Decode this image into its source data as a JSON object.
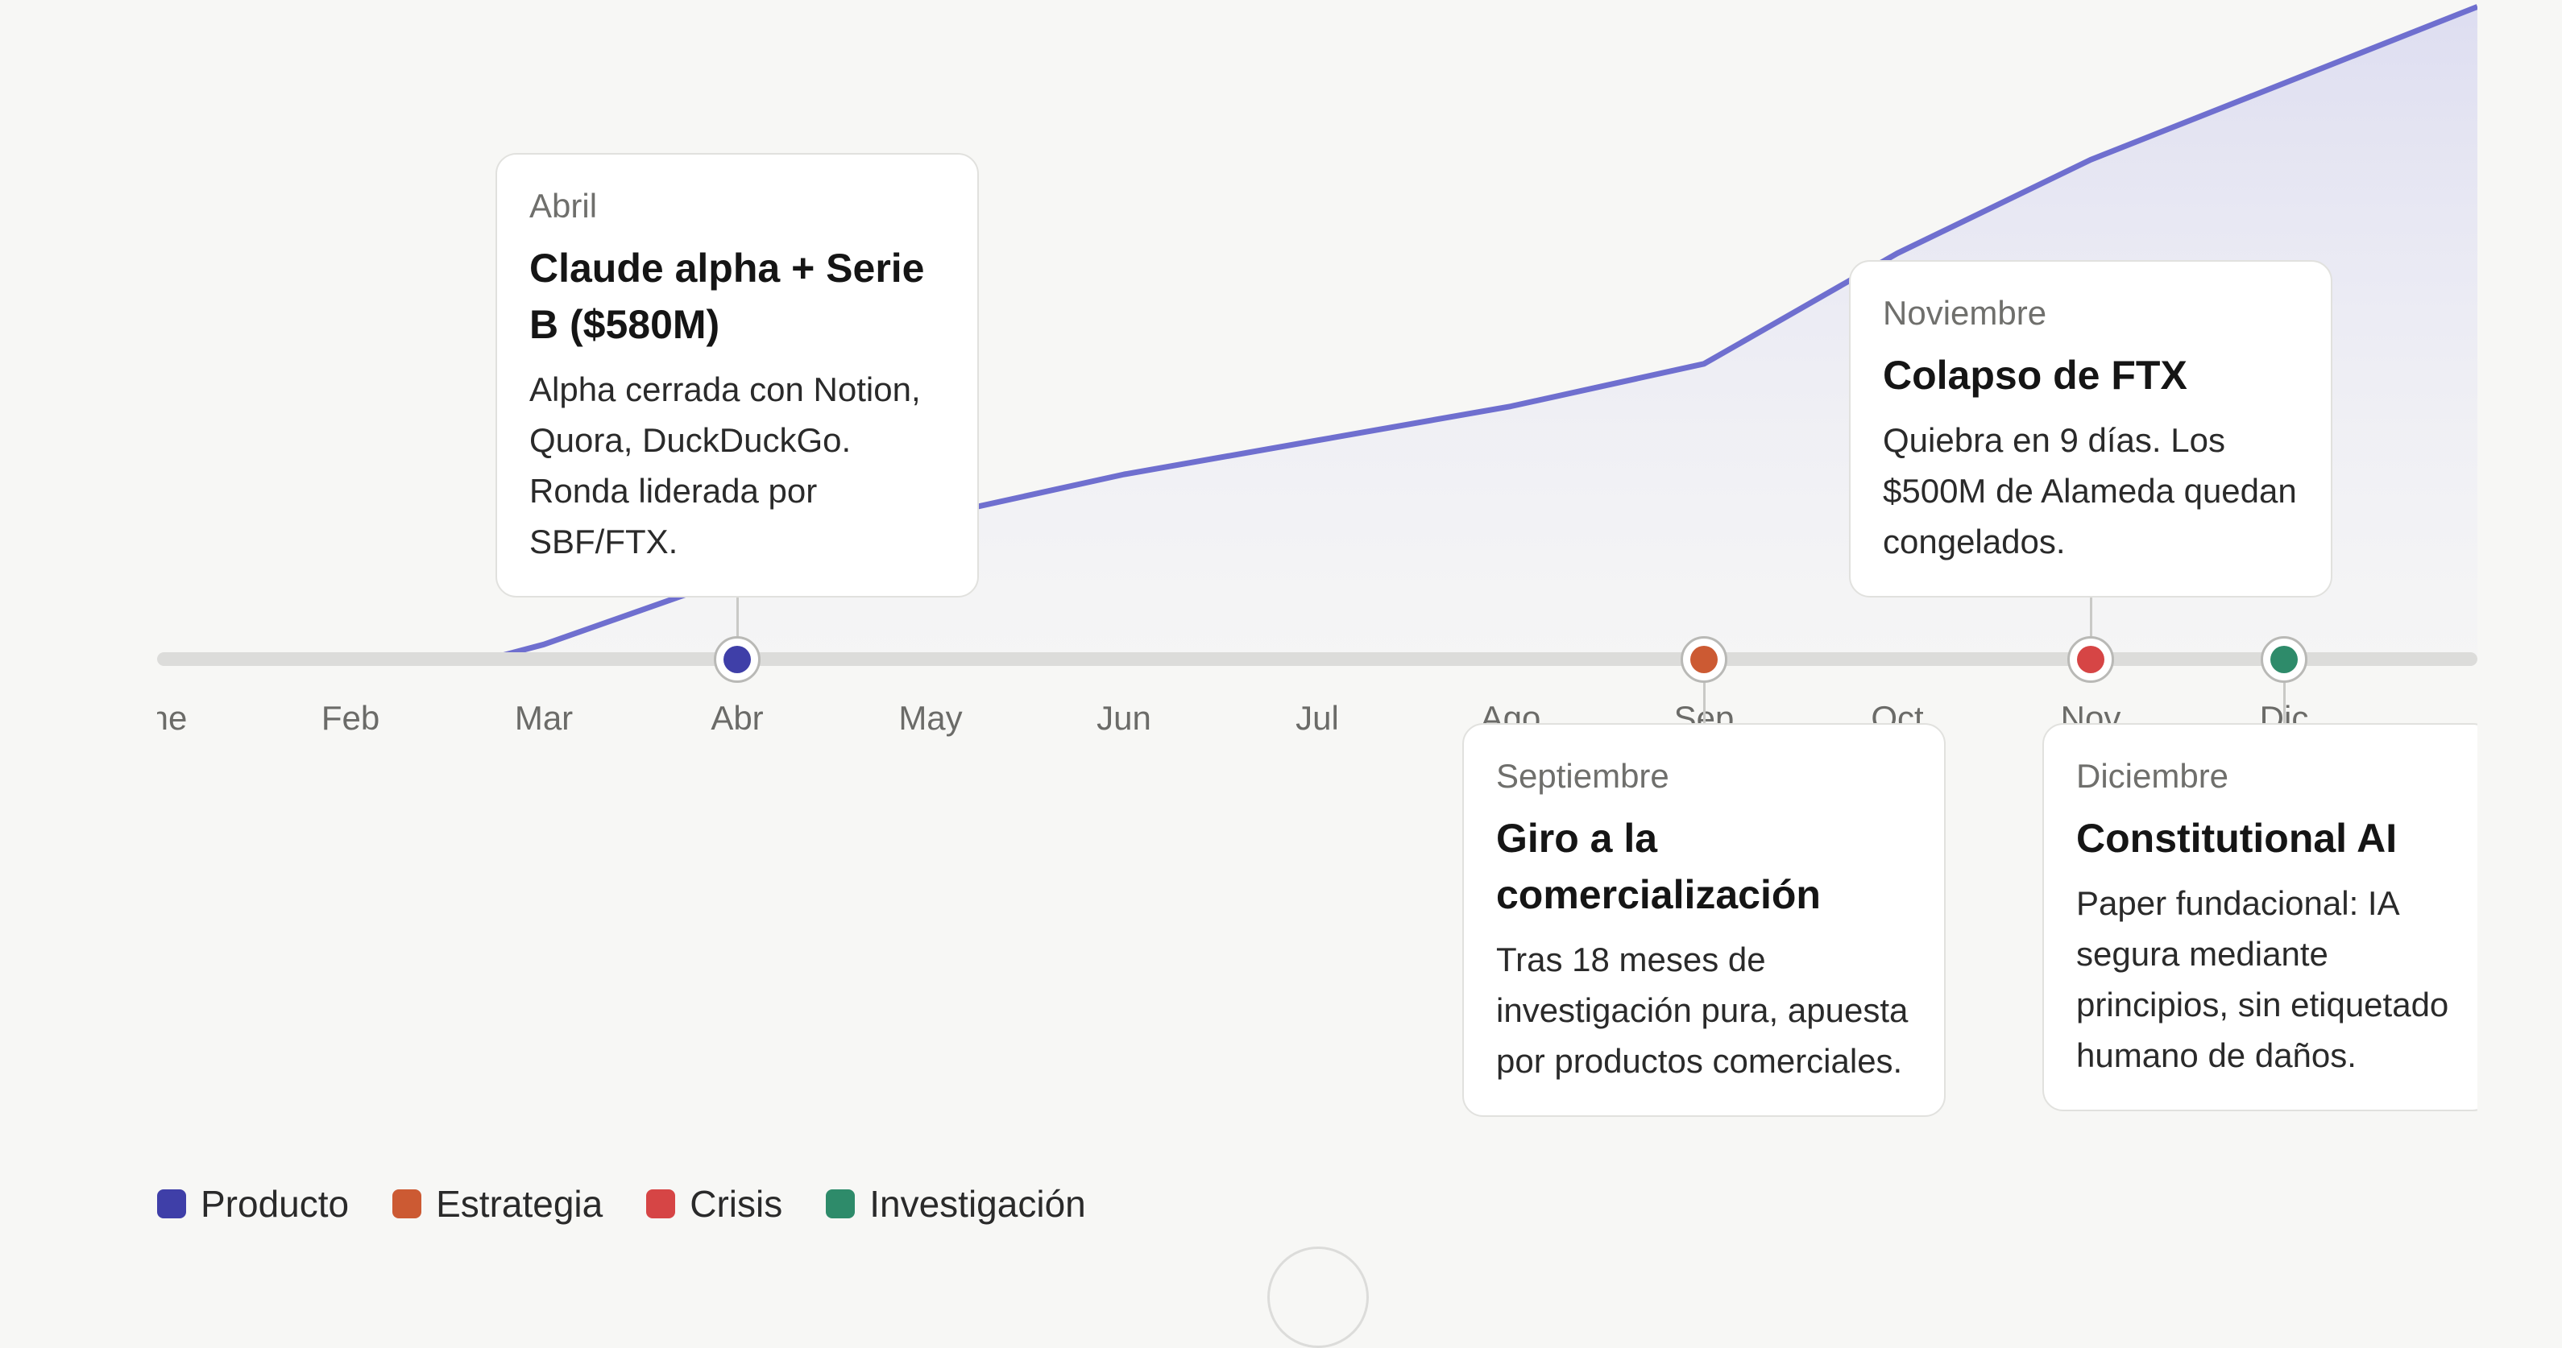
{
  "colors": {
    "producto": "#3f3fa8",
    "estrategia": "#cc5a33",
    "crisis": "#d64545",
    "investigacion": "#2e8b6a",
    "trend_line": "#6f6fcf"
  },
  "timeline": {
    "months": [
      "Ene",
      "Feb",
      "Mar",
      "Abr",
      "May",
      "Jun",
      "Jul",
      "Ago",
      "Sep",
      "Oct",
      "Nov",
      "Dic"
    ],
    "trend": [
      42,
      47,
      53,
      61,
      68,
      73,
      77,
      81,
      86,
      99,
      110,
      119
    ],
    "events": [
      {
        "id": "abril",
        "month_index": 3,
        "category": "producto",
        "placement": "above",
        "month": "Abril",
        "title": "Claude alpha + Serie B ($580M)",
        "desc": "Alpha cerrada con Notion, Quora, DuckDuckGo. Ronda liderada por SBF/FTX."
      },
      {
        "id": "septiembre",
        "month_index": 8,
        "category": "estrategia",
        "placement": "below",
        "month": "Septiembre",
        "title": "Giro a la comercialización",
        "desc": "Tras 18 meses de investigación pura, apuesta por productos comerciales."
      },
      {
        "id": "noviembre",
        "month_index": 10,
        "category": "crisis",
        "placement": "above",
        "month": "Noviembre",
        "title": "Colapso de FTX",
        "desc": "Quiebra en 9 días. Los $500M de Alameda quedan congelados."
      },
      {
        "id": "diciembre",
        "month_index": 11,
        "category": "investigacion",
        "placement": "below",
        "month": "Diciembre",
        "title": "Constitutional AI",
        "desc": "Paper fundacional: IA segura mediante principios, sin etiquetado humano de daños."
      }
    ]
  },
  "legend": [
    {
      "key": "producto",
      "label": "Producto"
    },
    {
      "key": "estrategia",
      "label": "Estrategia"
    },
    {
      "key": "crisis",
      "label": "Crisis"
    },
    {
      "key": "investigacion",
      "label": "Investigación"
    }
  ]
}
